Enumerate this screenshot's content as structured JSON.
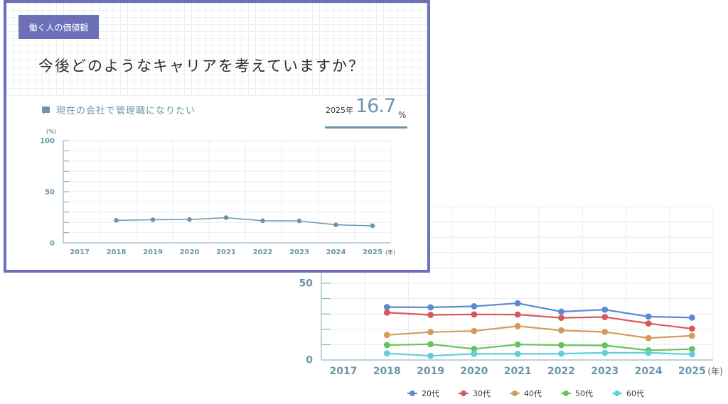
{
  "card": {
    "tag": "働く人の価値観",
    "question": "今後どのようなキャリアを考えていますか？",
    "metric_label": "現在の会社で管理職になりたい",
    "metric_year": "2025年",
    "metric_value": "16.7",
    "metric_unit": "%"
  },
  "chart_data": [
    {
      "type": "line",
      "ylabel": "(%)",
      "x_unit": "(年)",
      "categories": [
        "2017",
        "2018",
        "2019",
        "2020",
        "2021",
        "2022",
        "2023",
        "2024",
        "2025"
      ],
      "ylim": [
        0,
        100
      ],
      "yticks": [
        0,
        50,
        100
      ],
      "grid": true,
      "series": [
        {
          "color": "#6a96ab",
          "values": [
            null,
            22.0,
            22.6,
            22.8,
            24.6,
            21.6,
            21.4,
            17.6,
            16.7
          ]
        }
      ]
    },
    {
      "type": "line",
      "x_unit": "(年)",
      "categories": [
        "2017",
        "2018",
        "2019",
        "2020",
        "2021",
        "2022",
        "2023",
        "2024",
        "2025"
      ],
      "ylim": [
        0,
        100
      ],
      "yticks": [
        0,
        50
      ],
      "grid": true,
      "legend_position": "bottom",
      "series": [
        {
          "name": "20代",
          "color": "#5b8bd0",
          "values": [
            null,
            34.5,
            34.3,
            35.0,
            37.0,
            31.5,
            32.8,
            28.3,
            27.6
          ]
        },
        {
          "name": "30代",
          "color": "#d9575a",
          "values": [
            null,
            30.9,
            29.4,
            29.7,
            29.6,
            27.5,
            28.0,
            23.8,
            20.4
          ]
        },
        {
          "name": "40代",
          "color": "#d49a5b",
          "values": [
            null,
            16.3,
            18.2,
            18.9,
            22.1,
            19.3,
            18.3,
            14.3,
            15.8
          ]
        },
        {
          "name": "50代",
          "color": "#66c35a",
          "values": [
            null,
            9.7,
            10.3,
            7.2,
            10.1,
            9.7,
            9.5,
            6.3,
            7.1
          ]
        },
        {
          "name": "60代",
          "color": "#60cfd9",
          "values": [
            null,
            4.3,
            2.7,
            4.0,
            4.0,
            4.1,
            4.7,
            4.7,
            3.7
          ]
        }
      ]
    }
  ]
}
